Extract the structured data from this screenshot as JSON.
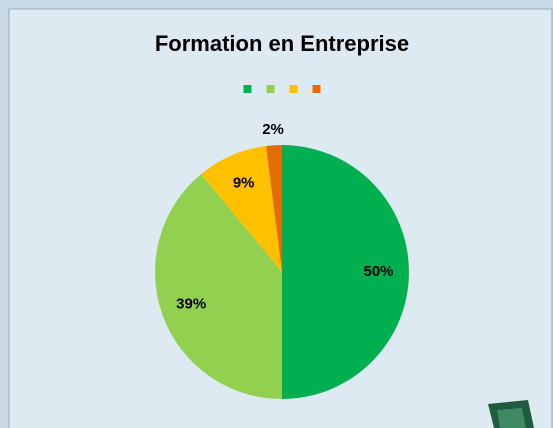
{
  "chart_data": {
    "type": "pie",
    "title": "Formation en Entreprise",
    "categories": [
      null,
      null,
      null,
      null
    ],
    "values": [
      50,
      39,
      9,
      2
    ],
    "value_labels": [
      "50%",
      "39%",
      "9%",
      "2%"
    ],
    "colors": [
      "#00b050",
      "#92d050",
      "#ffc000",
      "#e36c09"
    ],
    "legend": "top"
  }
}
